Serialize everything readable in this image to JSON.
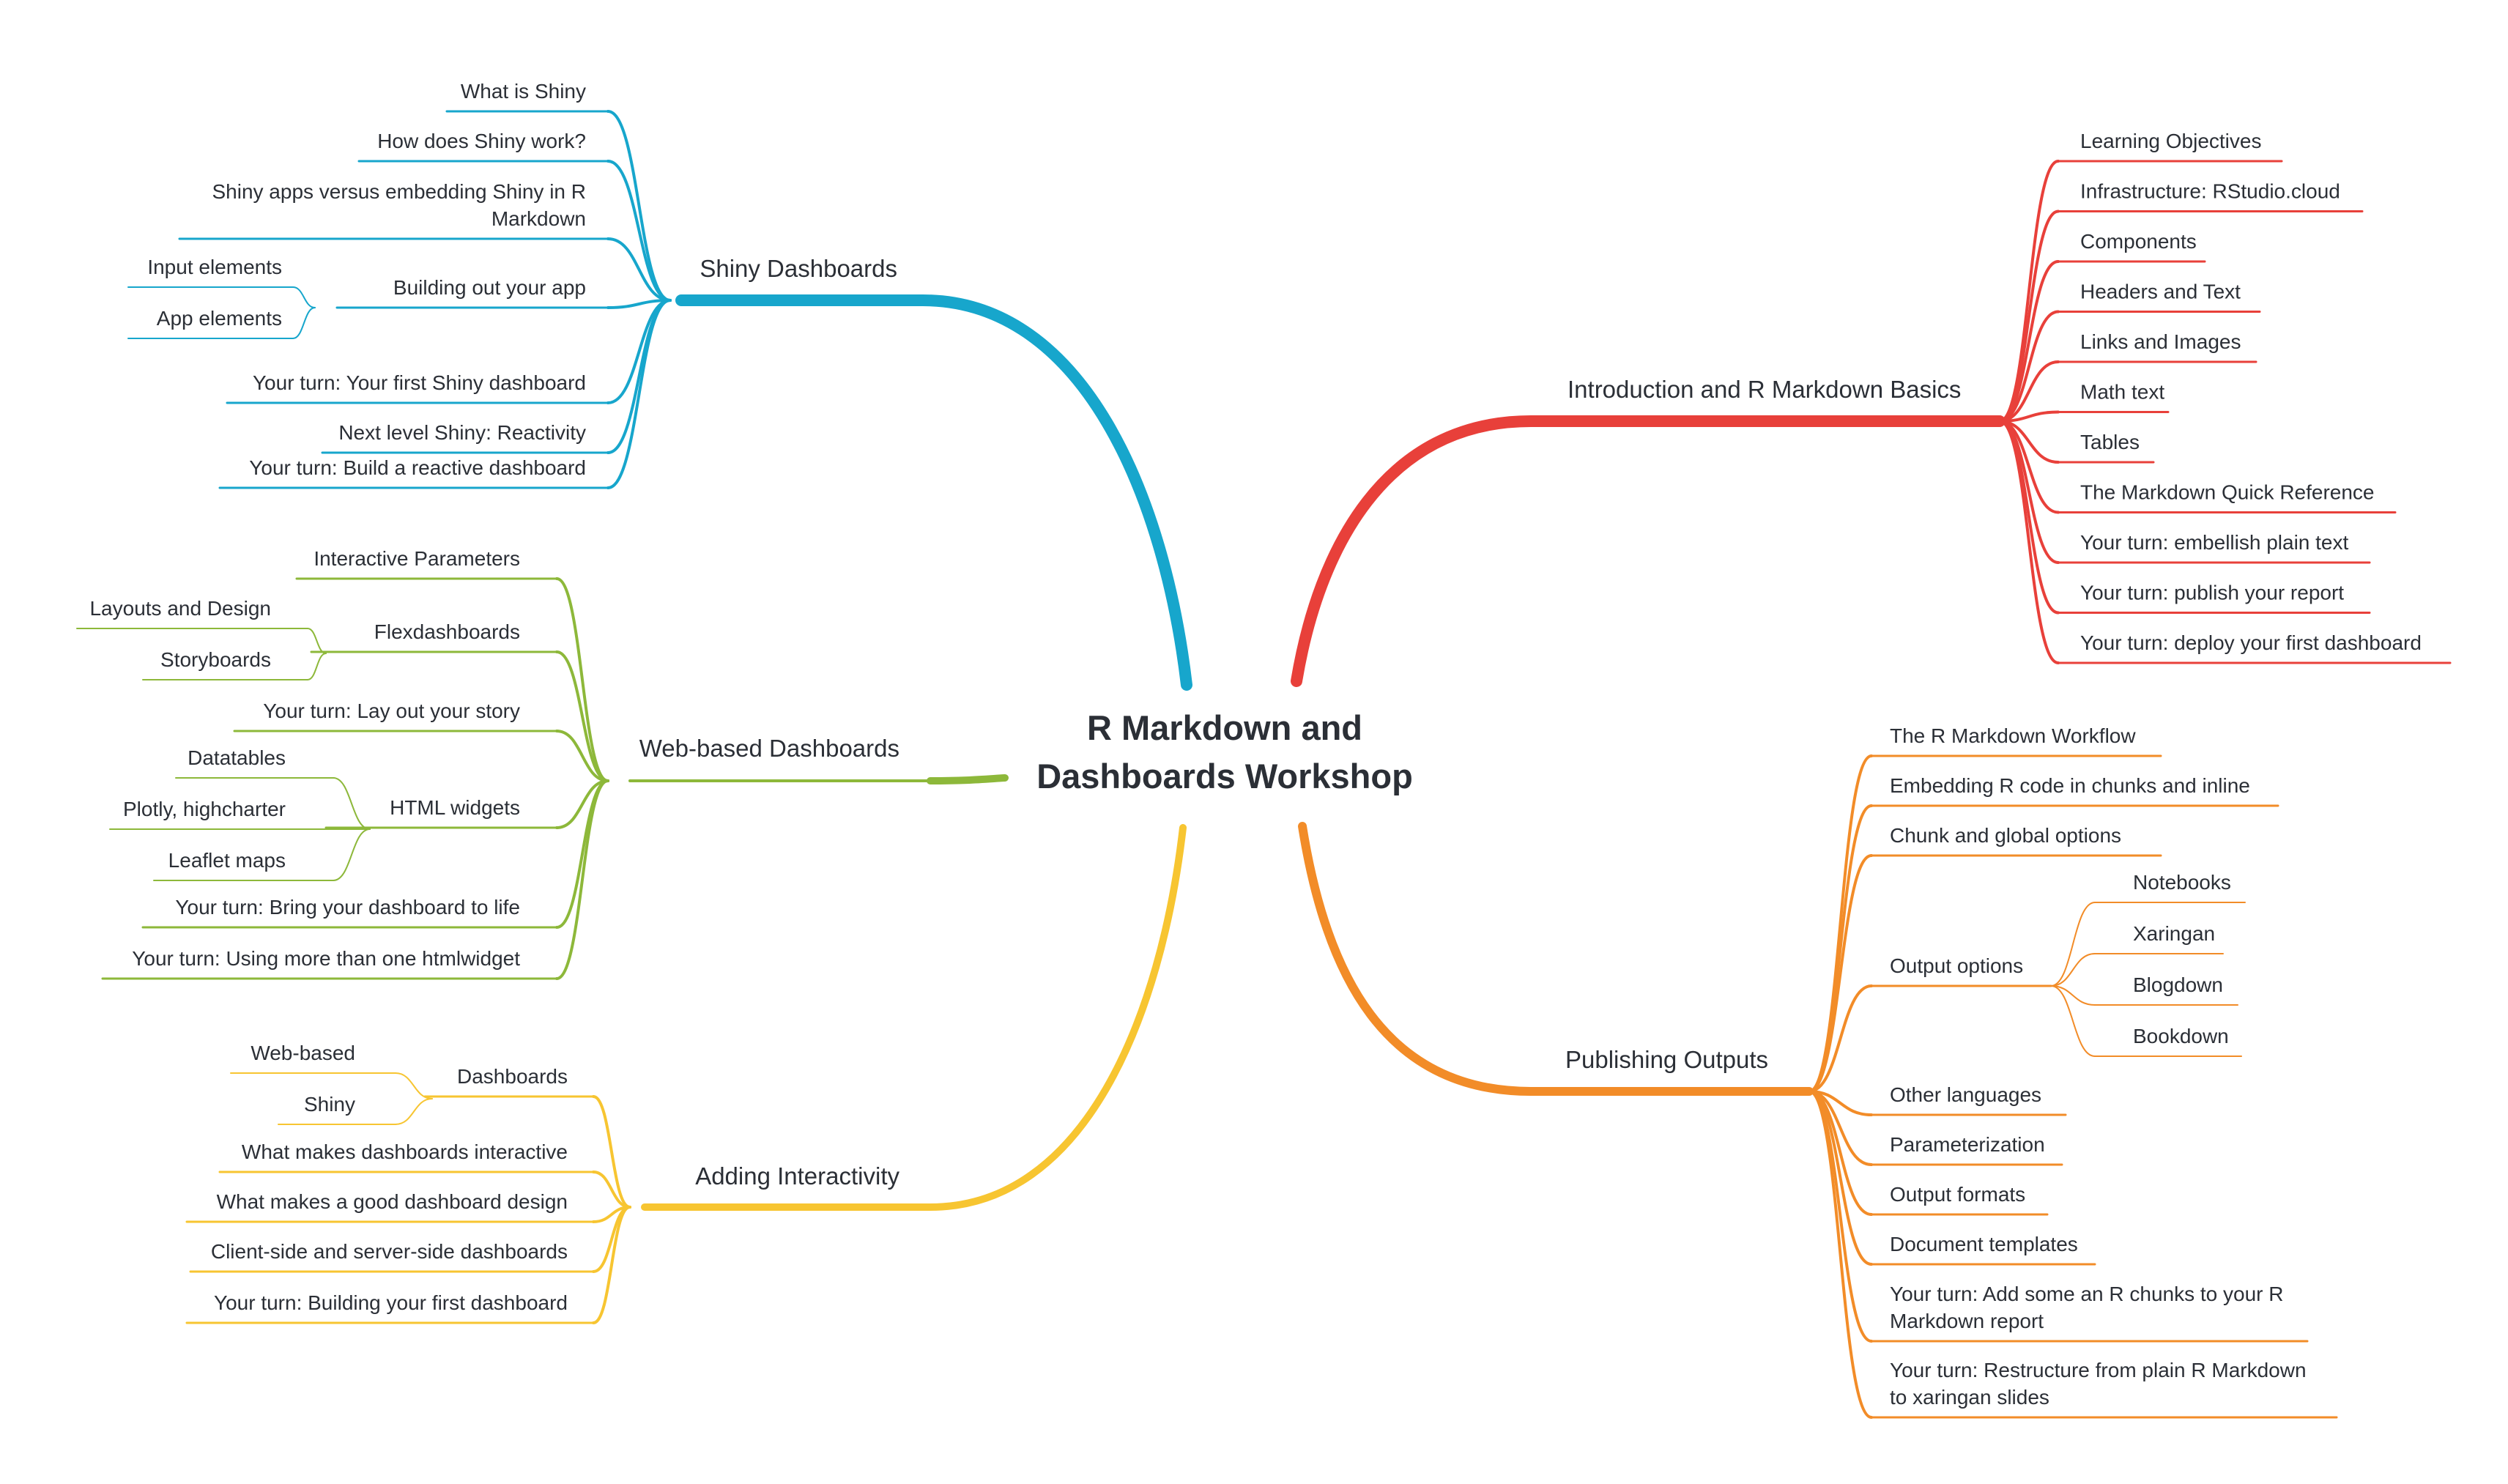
{
  "center": [
    "R Markdown and",
    "Dashboards Workshop"
  ],
  "branches": {
    "shiny": {
      "title": "Shiny Dashboards",
      "color": "#17a6cc",
      "items": {
        "what_is": "What is Shiny",
        "how_work": [
          "How does Shiny work?"
        ],
        "versus": [
          "Shiny apps versus embedding Shiny in R",
          "Markdown"
        ],
        "building": "Building out your app",
        "input_elements": "Input elements",
        "app_elements": "App elements",
        "first": "Your turn: Your first Shiny dashboard",
        "reactivity": "Next level Shiny: Reactivity",
        "reactive": "Your turn: Build a reactive dashboard"
      }
    },
    "web": {
      "title": "Web-based Dashboards",
      "color": "#8db83a",
      "items": {
        "params": "Interactive Parameters",
        "flex": "Flexdashboards",
        "layouts": "Layouts and Design",
        "storyboards": "Storyboards",
        "layout_story": "Your turn: Lay out your story",
        "html_widgets": "HTML widgets",
        "datatables": "Datatables",
        "plotly": "Plotly, highcharter",
        "leaflet": "Leaflet maps",
        "bring": "Your turn: Bring your dashboard to life",
        "more": "Your turn: Using more than one htmlwidget"
      }
    },
    "interactivity": {
      "title": "Adding Interactivity",
      "color": "#f7c531",
      "items": {
        "dashboards": "Dashboards",
        "web_based": "Web-based",
        "shiny": "Shiny",
        "what_interactive": "What makes dashboards interactive",
        "good_design": "What makes a good dashboard design",
        "client_server": "Client-side and server-side dashboards",
        "building_first": "Your turn: Building your first dashboard"
      }
    },
    "intro": {
      "title": "Introduction and R Markdown Basics",
      "color": "#e8403a",
      "items": [
        "Learning Objectives",
        "Infrastructure: RStudio.cloud",
        "Components",
        "Headers and Text",
        "Links and Images",
        "Math text",
        "Tables",
        "The Markdown Quick Reference",
        "Your turn: embellish plain text",
        "Your turn: publish your report",
        "Your turn: deploy your first dashboard"
      ]
    },
    "publishing": {
      "title": "Publishing Outputs",
      "color": "#f28c28",
      "items": {
        "workflow": "The R Markdown Workflow",
        "embedding": "Embedding R code in chunks and inline",
        "chunk_options": "Chunk and global options",
        "output_options": "Output options",
        "notebooks": "Notebooks",
        "xaringan": "Xaringan",
        "blogdown": "Blogdown",
        "bookdown": "Bookdown",
        "other_languages": "Other languages",
        "parameterization": "Parameterization",
        "output_formats": "Output formats",
        "templates": "Document templates",
        "add_chunks": [
          "Your turn: Add some an R chunks to your R",
          "Markdown report"
        ],
        "restructure": [
          "Your turn: Restructure from plain R Markdown",
          "to xaringan slides"
        ]
      }
    }
  }
}
